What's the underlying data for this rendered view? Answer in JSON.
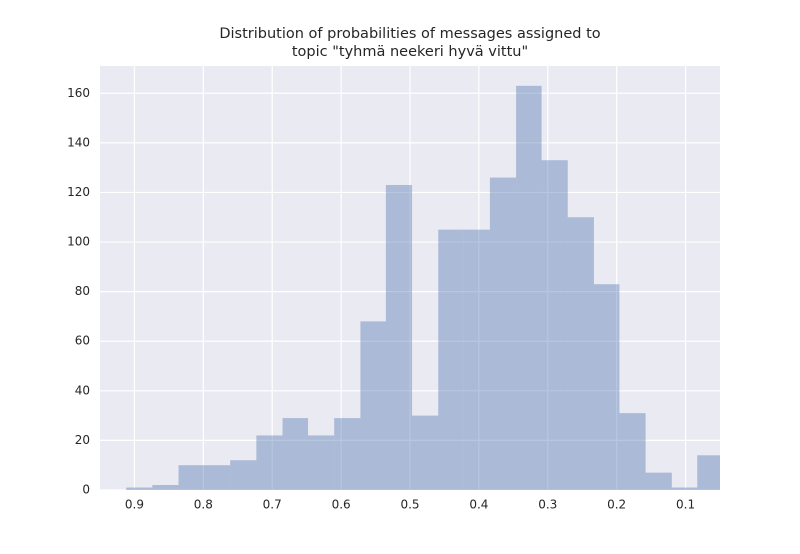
{
  "chart_data": {
    "type": "histogram",
    "title": [
      "Distribution of probabilities of messages assigned to",
      "topic \"tyhmä neekeri hyvä vittu\""
    ],
    "bins": [
      0.912,
      0.874,
      0.836,
      0.799,
      0.761,
      0.723,
      0.685,
      0.648,
      0.61,
      0.572,
      0.535,
      0.497,
      0.459,
      0.422,
      0.384,
      0.346,
      0.309,
      0.271,
      0.233,
      0.196,
      0.158,
      0.12,
      0.083,
      0.045
    ],
    "counts": [
      1,
      2,
      10,
      10,
      12,
      22,
      29,
      22,
      29,
      68,
      123,
      30,
      105,
      105,
      126,
      163,
      133,
      110,
      83,
      31,
      7,
      1,
      14
    ],
    "color": "#4c72b0",
    "xlim": [
      0.95,
      0.05
    ],
    "xticks": [
      0.9,
      0.8,
      0.7,
      0.6,
      0.5,
      0.4,
      0.3,
      0.2,
      0.1
    ],
    "ylim": [
      0,
      171
    ],
    "yticks": [
      0,
      20,
      40,
      60,
      80,
      100,
      120,
      140,
      160
    ],
    "grid": true
  }
}
